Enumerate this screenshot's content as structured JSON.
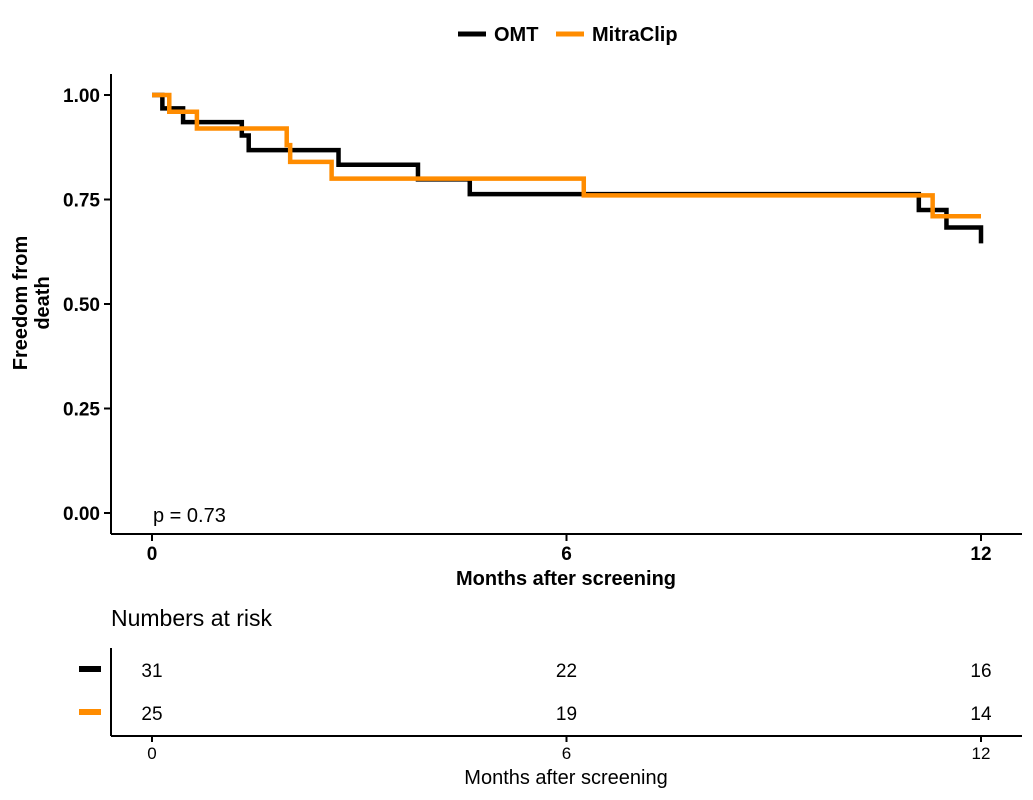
{
  "chart_data": {
    "type": "line",
    "subtype": "kaplan-meier step",
    "ylabel": "Freedom from death",
    "xlabel": "Months after screening",
    "xlim": [
      0,
      12
    ],
    "ylim": [
      0,
      1
    ],
    "xticks": [
      "0",
      "6",
      "12"
    ],
    "yticks": [
      "0.00",
      "0.25",
      "0.50",
      "0.75",
      "1.00"
    ],
    "legend_position": "top",
    "annotation": "p = 0.73",
    "series": [
      {
        "name": "OMT",
        "color": "#000000",
        "steps": [
          {
            "x": 0,
            "y": 1.0
          },
          {
            "x": 0.15,
            "y": 0.968
          },
          {
            "x": 0.45,
            "y": 0.935
          },
          {
            "x": 1.3,
            "y": 0.903
          },
          {
            "x": 1.4,
            "y": 0.868
          },
          {
            "x": 2.7,
            "y": 0.833
          },
          {
            "x": 3.85,
            "y": 0.798
          },
          {
            "x": 4.6,
            "y": 0.763
          },
          {
            "x": 11.1,
            "y": 0.725
          },
          {
            "x": 11.5,
            "y": 0.683
          },
          {
            "x": 12.0,
            "y": 0.645
          }
        ],
        "end_x": 12.0
      },
      {
        "name": "MitraClip",
        "color": "#FF8C00",
        "steps": [
          {
            "x": 0,
            "y": 1.0
          },
          {
            "x": 0.25,
            "y": 0.96
          },
          {
            "x": 0.65,
            "y": 0.92
          },
          {
            "x": 1.95,
            "y": 0.88
          },
          {
            "x": 2.0,
            "y": 0.84
          },
          {
            "x": 2.6,
            "y": 0.8
          },
          {
            "x": 6.25,
            "y": 0.76
          },
          {
            "x": 11.3,
            "y": 0.71
          }
        ],
        "end_x": 12.0
      }
    ]
  },
  "risk_table": {
    "title": "Numbers at risk",
    "xlabel": "Months after screening",
    "ticks": [
      "0",
      "6",
      "12"
    ],
    "tick_values": [
      0,
      6,
      12
    ],
    "rows": [
      {
        "series": "OMT",
        "color": "#000000",
        "values": [
          "31",
          "22",
          "16"
        ]
      },
      {
        "series": "MitraClip",
        "color": "#FF8C00",
        "values": [
          "25",
          "19",
          "14"
        ]
      }
    ]
  }
}
